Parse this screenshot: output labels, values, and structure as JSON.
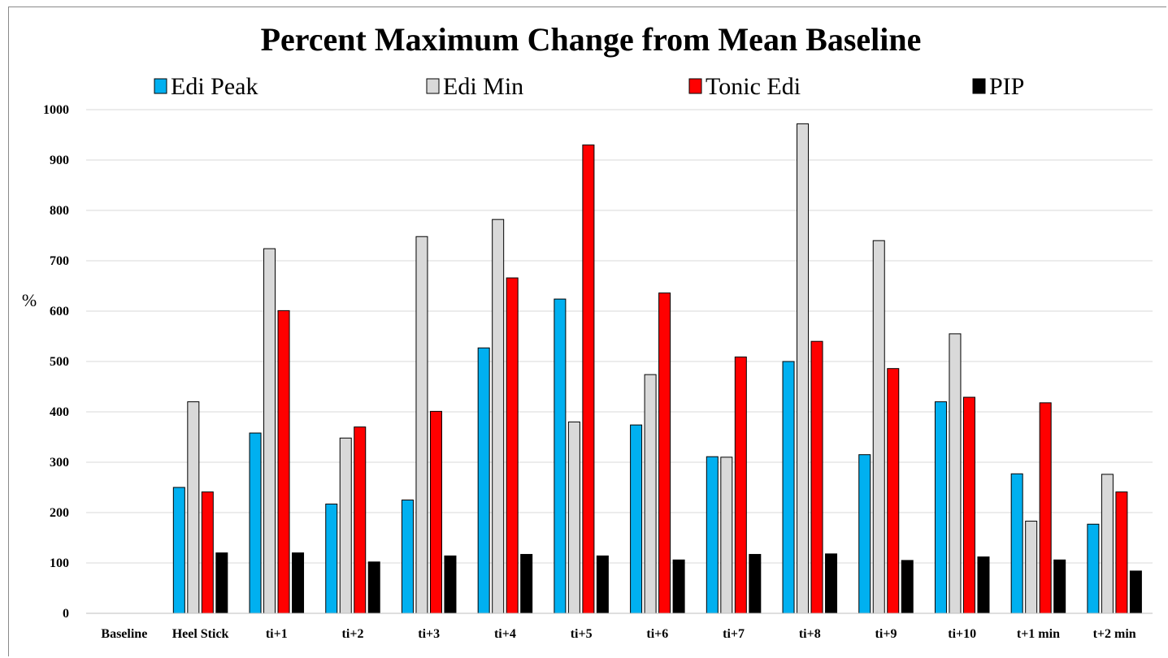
{
  "chart_data": {
    "type": "bar",
    "title": "Percent Maximum Change from Mean Baseline",
    "ylabel": "%",
    "xlabel": "",
    "ylim": [
      0,
      1000
    ],
    "yticks": [
      0,
      100,
      200,
      300,
      400,
      500,
      600,
      700,
      800,
      900,
      1000
    ],
    "grid": true,
    "legend_position": "top",
    "categories": [
      "Baseline",
      "Heel Stick",
      "ti+1",
      "ti+2",
      "ti+3",
      "ti+4",
      "ti+5",
      "ti+6",
      "ti+7",
      "ti+8",
      "ti+9",
      "ti+10",
      "t+1 min",
      "t+2 min"
    ],
    "series": [
      {
        "name": "Edi Peak",
        "color": "#00b0f0",
        "values": [
          0,
          250,
          358,
          217,
          225,
          527,
          624,
          374,
          311,
          500,
          315,
          420,
          277,
          177
        ]
      },
      {
        "name": "Edi Min",
        "color": "#d9d9d9",
        "values": [
          0,
          420,
          724,
          348,
          748,
          782,
          380,
          474,
          310,
          972,
          740,
          555,
          183,
          276
        ]
      },
      {
        "name": "Tonic Edi",
        "color": "#ff0000",
        "values": [
          0,
          241,
          601,
          370,
          401,
          666,
          930,
          636,
          509,
          540,
          486,
          429,
          418,
          241
        ]
      },
      {
        "name": "PIP",
        "color": "#000000",
        "values": [
          0,
          120,
          120,
          102,
          114,
          117,
          114,
          106,
          117,
          118,
          105,
          112,
          106,
          84
        ]
      }
    ]
  }
}
